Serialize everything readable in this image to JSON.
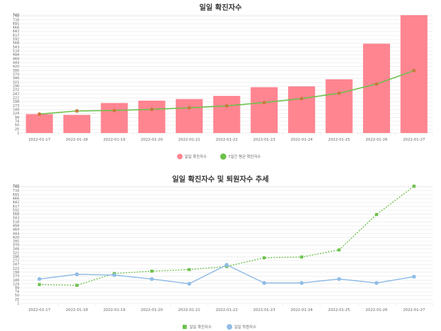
{
  "chart_data": [
    {
      "type": "bar",
      "title": "일일 확진자수",
      "categories": [
        "2022-01-17",
        "2022-01-18",
        "2022-01-19",
        "2022-01-20",
        "2022-01-21",
        "2022-01-22",
        "2022-01-23",
        "2022-01-24",
        "2022-01-25",
        "2022-01-26",
        "2022-01-27"
      ],
      "ylim": [
        0,
        745
      ],
      "y_ticks": [
        1,
        25,
        50,
        74,
        99,
        124,
        148,
        173,
        198,
        222,
        247,
        272,
        296,
        321,
        346,
        370,
        395,
        420,
        444,
        469,
        494,
        518,
        543,
        568,
        592,
        617,
        642,
        666,
        691,
        716,
        740,
        745
      ],
      "legend_position": "bottom",
      "grid": true,
      "series": [
        {
          "name": "일일 확진자수",
          "kind": "bar",
          "color": "#ff8591",
          "values": [
            120,
            115,
            190,
            205,
            215,
            235,
            290,
            295,
            340,
            565,
            745
          ]
        },
        {
          "name": "7일간 평균 확진자수",
          "kind": "line",
          "color": "#6cc04a",
          "marker_color": "#c87b3e",
          "values": [
            120,
            140,
            143,
            150,
            160,
            172,
            193,
            218,
            252,
            310,
            395
          ]
        }
      ]
    },
    {
      "type": "line",
      "title": "일일 확진자수 및 퇴원자수 추세",
      "categories": [
        "2022-01-17",
        "2022-01-18",
        "2022-01-19",
        "2022-01-20",
        "2022-01-21",
        "2022-01-22",
        "2022-01-23",
        "2022-01-24",
        "2022-01-25",
        "2022-01-26",
        "2022-01-27"
      ],
      "ylim": [
        0,
        745
      ],
      "y_ticks": [
        1,
        25,
        50,
        74,
        99,
        124,
        148,
        173,
        198,
        222,
        247,
        272,
        296,
        321,
        346,
        370,
        395,
        420,
        444,
        469,
        494,
        518,
        543,
        568,
        592,
        617,
        642,
        666,
        691,
        716,
        740,
        745
      ],
      "legend_position": "bottom",
      "grid": true,
      "series": [
        {
          "name": "일일 확진자수",
          "color": "#6cc04a",
          "marker": "square",
          "dashed": true,
          "values": [
            120,
            115,
            190,
            205,
            215,
            235,
            290,
            295,
            340,
            565,
            745
          ]
        },
        {
          "name": "일일 퇴원자수",
          "color": "#90bce6",
          "marker": "circle",
          "dashed": false,
          "values": [
            155,
            185,
            180,
            155,
            125,
            245,
            130,
            130,
            155,
            130,
            170
          ]
        }
      ]
    }
  ]
}
